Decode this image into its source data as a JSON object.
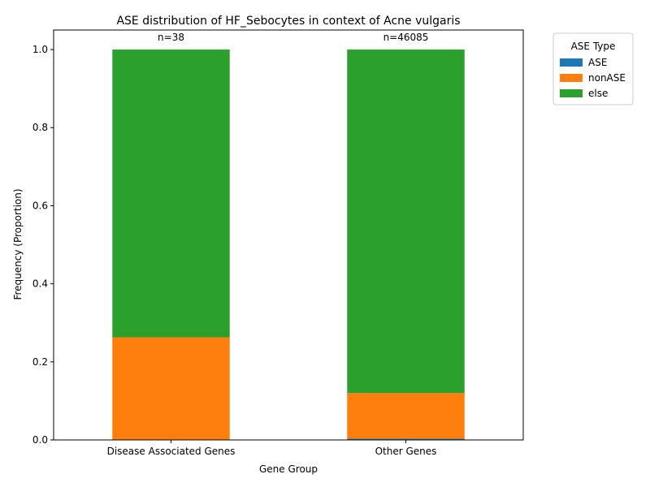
{
  "chart_data": {
    "type": "bar",
    "stacked": true,
    "title": "ASE distribution of HF_Sebocytes in context of Acne vulgaris",
    "xlabel": "Gene Group",
    "ylabel": "Frequency (Proportion)",
    "categories": [
      "Disease Associated Genes",
      "Other Genes"
    ],
    "series": [
      {
        "name": "ASE",
        "color": "#1f77b4",
        "values": [
          0.0,
          0.003
        ]
      },
      {
        "name": "nonASE",
        "color": "#ff7f0e",
        "values": [
          0.263,
          0.117
        ]
      },
      {
        "name": "else",
        "color": "#2ca02c",
        "values": [
          0.737,
          0.88
        ]
      }
    ],
    "annotations": [
      "n=38",
      "n=46085"
    ],
    "ylim": [
      0,
      1.05
    ],
    "yticks": [
      "0.0",
      "0.2",
      "0.4",
      "0.6",
      "0.8",
      "1.0"
    ],
    "ytick_values": [
      0,
      0.2,
      0.4,
      0.6,
      0.8,
      1.0
    ],
    "legend": {
      "title": "ASE Type",
      "placement": "outside-top-right"
    },
    "grid": false
  }
}
